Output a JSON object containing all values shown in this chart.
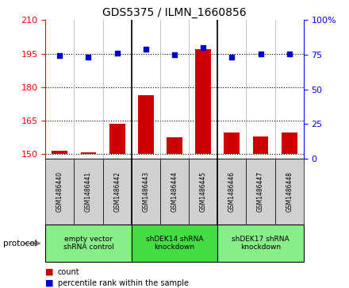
{
  "title": "GDS5375 / ILMN_1660856",
  "samples": [
    "GSM1486440",
    "GSM1486441",
    "GSM1486442",
    "GSM1486443",
    "GSM1486444",
    "GSM1486445",
    "GSM1486446",
    "GSM1486447",
    "GSM1486448"
  ],
  "counts": [
    151.5,
    150.8,
    163.5,
    176.5,
    157.5,
    197.0,
    159.5,
    158.0,
    159.5
  ],
  "percentiles": [
    74.5,
    73.5,
    76.0,
    79.0,
    75.0,
    80.0,
    73.5,
    75.5,
    75.5
  ],
  "ylim_left": [
    148,
    210
  ],
  "ylim_right": [
    0,
    100
  ],
  "yticks_left": [
    150,
    165,
    180,
    195,
    210
  ],
  "yticks_right": [
    0,
    25,
    50,
    75,
    100
  ],
  "bar_color": "#cc0000",
  "dot_color": "#0000cc",
  "bar_bottom": 150,
  "groups": [
    {
      "label": "empty vector\nshRNA control",
      "start": 0,
      "end": 3,
      "color": "#88ee88"
    },
    {
      "label": "shDEK14 shRNA\nknockdown",
      "start": 3,
      "end": 6,
      "color": "#44dd44"
    },
    {
      "label": "shDEK17 shRNA\nknockdown",
      "start": 6,
      "end": 9,
      "color": "#88ee88"
    }
  ],
  "protocol_label": "protocol",
  "legend_count_label": "count",
  "legend_percentile_label": "percentile rank within the sample",
  "xtick_bg": "#d0d0d0"
}
